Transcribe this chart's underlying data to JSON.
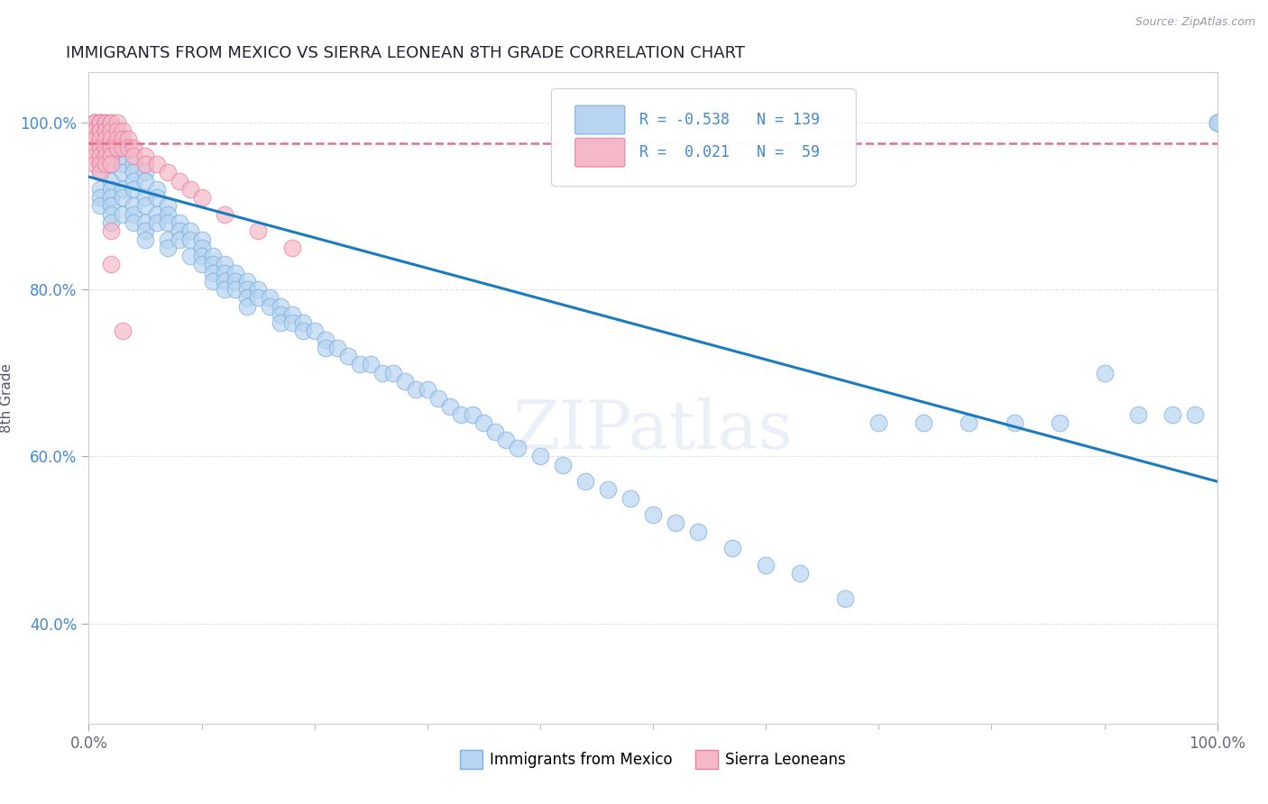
{
  "title": "IMMIGRANTS FROM MEXICO VS SIERRA LEONEAN 8TH GRADE CORRELATION CHART",
  "source_text": "Source: ZipAtlas.com",
  "xlabel": "",
  "ylabel": "8th Grade",
  "xlim": [
    0.0,
    1.0
  ],
  "ylim": [
    0.28,
    1.06
  ],
  "x_ticks": [
    0.0,
    1.0
  ],
  "x_tick_labels": [
    "0.0%",
    "100.0%"
  ],
  "y_ticks": [
    0.4,
    0.6,
    0.8,
    1.0
  ],
  "y_tick_labels": [
    "40.0%",
    "60.0%",
    "80.0%",
    "100.0%"
  ],
  "blue_R": -0.538,
  "blue_N": 139,
  "pink_R": 0.021,
  "pink_N": 59,
  "blue_color": "#b8d4f0",
  "blue_edge": "#7ab0e0",
  "pink_color": "#f5b8c8",
  "pink_edge": "#e880a0",
  "blue_line_color": "#1a7bbf",
  "pink_line_color": "#e07090",
  "watermark": "ZIPatlas",
  "grid_color": "#d8dde8",
  "blue_trend_x": [
    0.0,
    1.0
  ],
  "blue_trend_y": [
    0.935,
    0.57
  ],
  "pink_trend_x": [
    0.0,
    1.0
  ],
  "pink_trend_y": [
    0.975,
    0.975
  ],
  "blue_scatter_x": [
    0.01,
    0.01,
    0.01,
    0.01,
    0.01,
    0.01,
    0.01,
    0.01,
    0.01,
    0.02,
    0.02,
    0.02,
    0.02,
    0.02,
    0.02,
    0.02,
    0.02,
    0.02,
    0.02,
    0.02,
    0.03,
    0.03,
    0.03,
    0.03,
    0.03,
    0.03,
    0.03,
    0.04,
    0.04,
    0.04,
    0.04,
    0.04,
    0.04,
    0.04,
    0.05,
    0.05,
    0.05,
    0.05,
    0.05,
    0.05,
    0.05,
    0.06,
    0.06,
    0.06,
    0.06,
    0.07,
    0.07,
    0.07,
    0.07,
    0.07,
    0.08,
    0.08,
    0.08,
    0.09,
    0.09,
    0.09,
    0.1,
    0.1,
    0.1,
    0.1,
    0.11,
    0.11,
    0.11,
    0.11,
    0.12,
    0.12,
    0.12,
    0.12,
    0.13,
    0.13,
    0.13,
    0.14,
    0.14,
    0.14,
    0.14,
    0.15,
    0.15,
    0.16,
    0.16,
    0.17,
    0.17,
    0.17,
    0.18,
    0.18,
    0.19,
    0.19,
    0.2,
    0.21,
    0.21,
    0.22,
    0.23,
    0.24,
    0.25,
    0.26,
    0.27,
    0.28,
    0.29,
    0.3,
    0.31,
    0.32,
    0.33,
    0.34,
    0.35,
    0.36,
    0.37,
    0.38,
    0.4,
    0.42,
    0.44,
    0.46,
    0.48,
    0.5,
    0.52,
    0.54,
    0.57,
    0.6,
    0.63,
    0.67,
    0.7,
    0.74,
    0.78,
    0.82,
    0.86,
    0.9,
    0.93,
    0.96,
    0.98,
    1.0,
    1.0,
    1.0
  ],
  "blue_scatter_y": [
    0.99,
    0.98,
    0.97,
    0.96,
    0.95,
    0.94,
    0.92,
    0.91,
    0.9,
    0.99,
    0.98,
    0.97,
    0.96,
    0.95,
    0.93,
    0.92,
    0.91,
    0.9,
    0.89,
    0.88,
    0.97,
    0.96,
    0.95,
    0.94,
    0.92,
    0.91,
    0.89,
    0.95,
    0.94,
    0.93,
    0.92,
    0.9,
    0.89,
    0.88,
    0.94,
    0.93,
    0.91,
    0.9,
    0.88,
    0.87,
    0.86,
    0.92,
    0.91,
    0.89,
    0.88,
    0.9,
    0.89,
    0.88,
    0.86,
    0.85,
    0.88,
    0.87,
    0.86,
    0.87,
    0.86,
    0.84,
    0.86,
    0.85,
    0.84,
    0.83,
    0.84,
    0.83,
    0.82,
    0.81,
    0.83,
    0.82,
    0.81,
    0.8,
    0.82,
    0.81,
    0.8,
    0.81,
    0.8,
    0.79,
    0.78,
    0.8,
    0.79,
    0.79,
    0.78,
    0.78,
    0.77,
    0.76,
    0.77,
    0.76,
    0.76,
    0.75,
    0.75,
    0.74,
    0.73,
    0.73,
    0.72,
    0.71,
    0.71,
    0.7,
    0.7,
    0.69,
    0.68,
    0.68,
    0.67,
    0.66,
    0.65,
    0.65,
    0.64,
    0.63,
    0.62,
    0.61,
    0.6,
    0.59,
    0.57,
    0.56,
    0.55,
    0.53,
    0.52,
    0.51,
    0.49,
    0.47,
    0.46,
    0.43,
    0.64,
    0.64,
    0.64,
    0.64,
    0.64,
    0.7,
    0.65,
    0.65,
    0.65,
    1.0,
    1.0,
    1.0
  ],
  "pink_scatter_x": [
    0.005,
    0.005,
    0.005,
    0.005,
    0.005,
    0.005,
    0.005,
    0.005,
    0.005,
    0.005,
    0.01,
    0.01,
    0.01,
    0.01,
    0.01,
    0.01,
    0.01,
    0.01,
    0.01,
    0.01,
    0.015,
    0.015,
    0.015,
    0.015,
    0.015,
    0.015,
    0.015,
    0.015,
    0.02,
    0.02,
    0.02,
    0.02,
    0.02,
    0.02,
    0.02,
    0.025,
    0.025,
    0.025,
    0.025,
    0.03,
    0.03,
    0.03,
    0.035,
    0.035,
    0.04,
    0.04,
    0.05,
    0.05,
    0.06,
    0.07,
    0.08,
    0.09,
    0.1,
    0.12,
    0.15,
    0.18,
    0.02,
    0.02,
    0.03
  ],
  "pink_scatter_y": [
    1.0,
    1.0,
    1.0,
    1.0,
    0.99,
    0.99,
    0.98,
    0.97,
    0.96,
    0.95,
    1.0,
    1.0,
    1.0,
    0.99,
    0.99,
    0.98,
    0.97,
    0.96,
    0.95,
    0.94,
    1.0,
    1.0,
    0.99,
    0.99,
    0.98,
    0.97,
    0.96,
    0.95,
    1.0,
    1.0,
    0.99,
    0.98,
    0.97,
    0.96,
    0.95,
    1.0,
    0.99,
    0.98,
    0.97,
    0.99,
    0.98,
    0.97,
    0.98,
    0.97,
    0.97,
    0.96,
    0.96,
    0.95,
    0.95,
    0.94,
    0.93,
    0.92,
    0.91,
    0.89,
    0.87,
    0.85,
    0.87,
    0.83,
    0.75
  ]
}
